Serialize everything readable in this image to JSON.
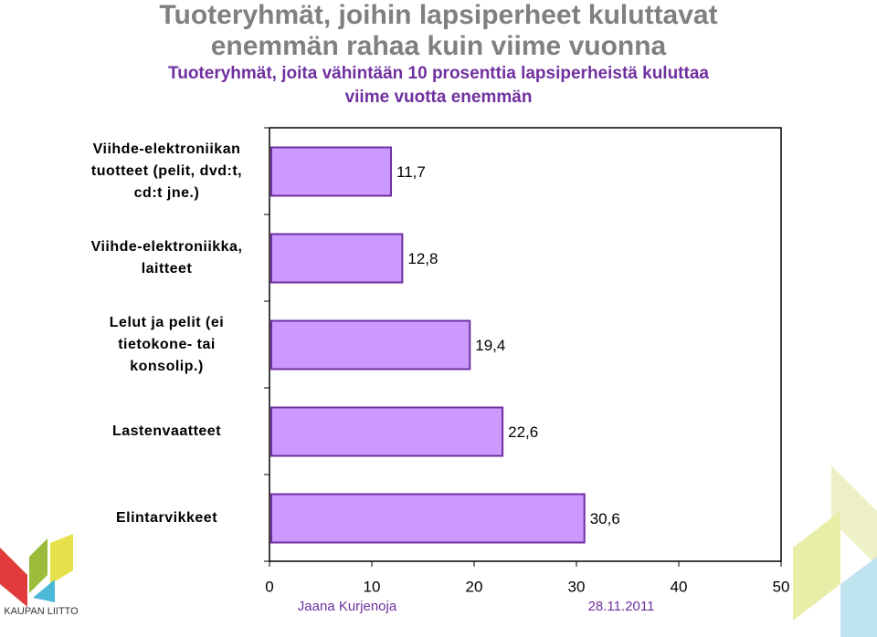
{
  "chart_data": {
    "type": "bar",
    "title": "Tuoteryhmät, joihin lapsiperheet kuluttavat\nenemmän rahaa kuin viime vuonna",
    "subtitle": "Tuoteryhmät, joita vähintään 10 prosenttia lapsiperheistä kuluttaa\nviime vuotta enemmän",
    "categories": [
      "Viihde-elektroniikan\ntuotteet (pelit, dvd:t,\ncd:t jne.)",
      "Viihde-elektroniikka,\nlaitteet",
      "Lelut ja pelit (ei\ntietokone- tai\nkonsolip.)",
      "Lastenvaatteet",
      "Elintarvikkeet"
    ],
    "values": [
      11.7,
      12.8,
      19.4,
      22.6,
      30.6
    ],
    "value_labels": [
      "11,7",
      "12,8",
      "19,4",
      "22,6",
      "30,6"
    ],
    "color": "#cc99ff",
    "xlim": [
      0,
      50
    ],
    "xticks": [
      0,
      10,
      20,
      30,
      40,
      50
    ]
  },
  "footer": {
    "author": "Jaana Kurjenoja",
    "date": "28.11.2011",
    "logo": "KAUPAN LIITTO"
  }
}
